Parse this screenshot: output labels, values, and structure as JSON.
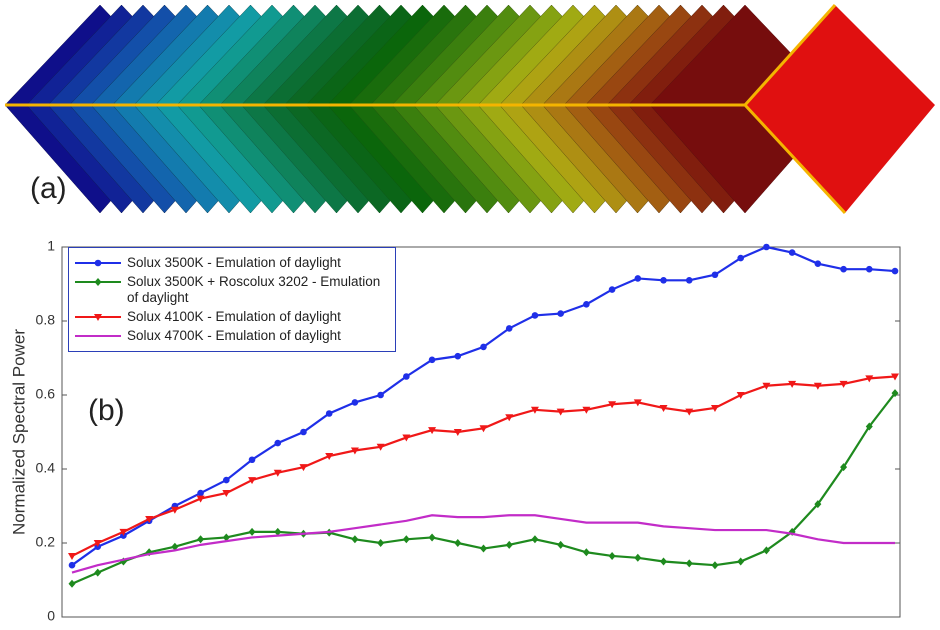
{
  "panel_a_label": "(a)",
  "chart_data": {
    "type": "line",
    "panel_label": "(b)",
    "ylabel": "Normalized Spectral Power",
    "ylim": [
      0,
      1
    ],
    "yticks": [
      0,
      0.2,
      0.4,
      0.6,
      0.8,
      1
    ],
    "legend": "upper left",
    "series": [
      {
        "name": "Solux 3500K - Emulation of daylight",
        "color": "#1f2fe8",
        "marker": "circle",
        "values": [
          0.14,
          0.19,
          0.22,
          0.26,
          0.3,
          0.335,
          0.37,
          0.425,
          0.47,
          0.5,
          0.55,
          0.58,
          0.6,
          0.65,
          0.695,
          0.705,
          0.73,
          0.78,
          0.815,
          0.82,
          0.845,
          0.885,
          0.915,
          0.91,
          0.91,
          0.925,
          0.97,
          1.0,
          0.985,
          0.955,
          0.94,
          0.94,
          0.935
        ]
      },
      {
        "name": "Solux 3500K + Roscolux 3202 - Emulation of daylight",
        "color": "#1e8a1e",
        "marker": "diamond",
        "values": [
          0.09,
          0.12,
          0.15,
          0.175,
          0.19,
          0.21,
          0.215,
          0.23,
          0.23,
          0.225,
          0.228,
          0.21,
          0.2,
          0.21,
          0.215,
          0.2,
          0.185,
          0.195,
          0.21,
          0.195,
          0.175,
          0.165,
          0.16,
          0.15,
          0.145,
          0.14,
          0.15,
          0.18,
          0.23,
          0.305,
          0.405,
          0.515,
          0.605
        ]
      },
      {
        "name": "Solux 4100K - Emulation of daylight",
        "color": "#f01818",
        "marker": "triangle-down",
        "values": [
          0.165,
          0.2,
          0.23,
          0.265,
          0.29,
          0.32,
          0.335,
          0.37,
          0.39,
          0.405,
          0.435,
          0.45,
          0.46,
          0.485,
          0.505,
          0.5,
          0.51,
          0.54,
          0.56,
          0.555,
          0.56,
          0.575,
          0.58,
          0.565,
          0.555,
          0.565,
          0.6,
          0.625,
          0.63,
          0.625,
          0.63,
          0.645,
          0.65
        ]
      },
      {
        "name": "Solux 4700K - Emulation of daylight",
        "color": "#c22cc8",
        "marker": "none",
        "values": [
          0.12,
          0.14,
          0.155,
          0.17,
          0.18,
          0.195,
          0.205,
          0.215,
          0.22,
          0.225,
          0.23,
          0.24,
          0.25,
          0.26,
          0.275,
          0.27,
          0.27,
          0.275,
          0.275,
          0.265,
          0.255,
          0.255,
          0.255,
          0.245,
          0.24,
          0.235,
          0.235,
          0.235,
          0.225,
          0.21,
          0.2,
          0.2,
          0.2
        ]
      }
    ]
  }
}
